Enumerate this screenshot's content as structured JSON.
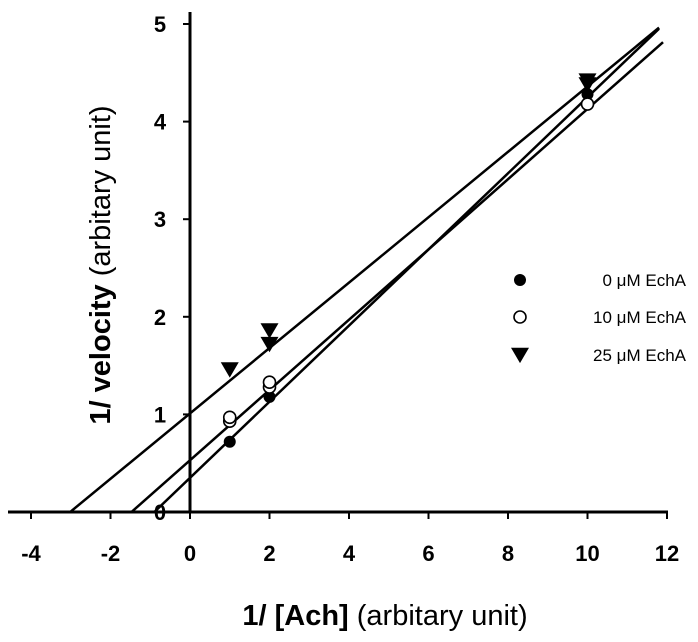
{
  "chart_data": {
    "type": "scatter",
    "title": "",
    "xlabel_bold": "1/ [Ach]",
    "xlabel_rest": " (arbitary unit)",
    "ylabel_bold": "1/ velocity",
    "ylabel_rest": " (arbitary unit)",
    "xlim": [
      -4.6,
      12.3
    ],
    "ylim": [
      -0.05,
      5.1
    ],
    "x_ticks": [
      -4,
      -2,
      0,
      2,
      4,
      6,
      8,
      10,
      12
    ],
    "x_tick_labels": [
      "-4",
      "-2",
      "0",
      "2",
      "4",
      "6",
      "8",
      "10",
      "12"
    ],
    "y_ticks": [
      0,
      1,
      2,
      3,
      4,
      5
    ],
    "y_tick_labels": [
      "0",
      "1",
      "2",
      "3",
      "4",
      "5"
    ],
    "legend_position": "right",
    "series": [
      {
        "name": "0 μM EchA",
        "marker": "filled-circle",
        "points": [
          [
            1,
            0.72
          ],
          [
            2,
            1.18
          ],
          [
            10,
            4.28
          ]
        ],
        "fit": {
          "slope": 0.39,
          "intercept": 0.35,
          "x_range": [
            -0.9,
            11.8
          ]
        }
      },
      {
        "name": "10 μM EchA",
        "marker": "open-circle",
        "points": [
          [
            1,
            0.93
          ],
          [
            1,
            0.97
          ],
          [
            2,
            1.28
          ],
          [
            2,
            1.33
          ],
          [
            10,
            4.18
          ]
        ],
        "fit": {
          "slope": 0.36,
          "intercept": 0.53,
          "x_range": [
            -1.47,
            11.9
          ]
        }
      },
      {
        "name": "25 μM EchA",
        "marker": "filled-triangle-down",
        "points": [
          [
            1,
            1.46
          ],
          [
            2,
            1.72
          ],
          [
            2,
            1.86
          ],
          [
            10,
            4.38
          ],
          [
            10,
            4.42
          ]
        ],
        "fit": {
          "slope": 0.335,
          "intercept": 1.01,
          "x_range": [
            -3.02,
            11.8
          ]
        }
      }
    ]
  }
}
